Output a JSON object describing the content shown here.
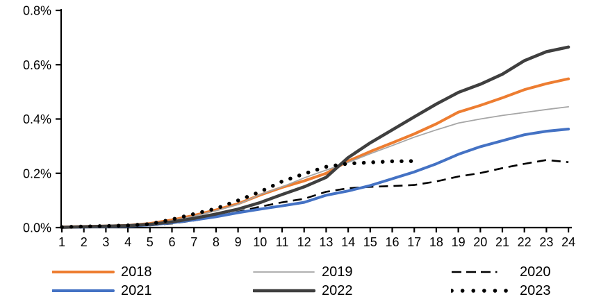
{
  "chart_data": {
    "type": "line",
    "title": "",
    "xlabel": "",
    "ylabel": "",
    "grid": false,
    "legend_position": "bottom",
    "x_axis": {
      "ticks": [
        "1",
        "2",
        "3",
        "4",
        "5",
        "6",
        "7",
        "8",
        "9",
        "10",
        "11",
        "12",
        "13",
        "14",
        "15",
        "16",
        "17",
        "18",
        "19",
        "20",
        "21",
        "22",
        "23",
        "24"
      ],
      "min": 1,
      "max": 24
    },
    "y_axis": {
      "ticks": [
        "0.0%",
        "0.2%",
        "0.4%",
        "0.6%",
        "0.8%"
      ],
      "min": 0.0,
      "max": 0.8,
      "unit": "percent"
    },
    "x": [
      1,
      2,
      3,
      4,
      5,
      6,
      7,
      8,
      9,
      10,
      11,
      12,
      13,
      14,
      15,
      16,
      17,
      18,
      19,
      20,
      21,
      22,
      23,
      24
    ],
    "series": [
      {
        "name": "2018",
        "color": "#ED7D31",
        "style": "solid",
        "width": 4,
        "values": [
          0.002,
          0.004,
          0.006,
          0.008,
          0.015,
          0.028,
          0.045,
          0.065,
          0.088,
          0.12,
          0.148,
          0.172,
          0.2,
          0.245,
          0.28,
          0.312,
          0.345,
          0.382,
          0.425,
          0.45,
          0.478,
          0.508,
          0.53,
          0.548
        ]
      },
      {
        "name": "2019",
        "color": "#A6A6A6",
        "style": "solid",
        "width": 1.8,
        "values": [
          0.002,
          0.003,
          0.005,
          0.007,
          0.012,
          0.025,
          0.042,
          0.062,
          0.085,
          0.122,
          0.15,
          0.183,
          0.212,
          0.24,
          0.272,
          0.302,
          0.333,
          0.36,
          0.385,
          0.4,
          0.413,
          0.424,
          0.435,
          0.445
        ]
      },
      {
        "name": "2020",
        "color": "#000000",
        "style": "dashed",
        "width": 2.6,
        "values": [
          0.001,
          0.002,
          0.003,
          0.005,
          0.008,
          0.015,
          0.026,
          0.04,
          0.058,
          0.077,
          0.093,
          0.106,
          0.132,
          0.145,
          0.15,
          0.153,
          0.157,
          0.17,
          0.188,
          0.201,
          0.219,
          0.235,
          0.249,
          0.241
        ]
      },
      {
        "name": "2021",
        "color": "#4472C4",
        "style": "solid",
        "width": 4,
        "values": [
          0.001,
          0.002,
          0.003,
          0.005,
          0.01,
          0.018,
          0.028,
          0.04,
          0.055,
          0.068,
          0.08,
          0.093,
          0.119,
          0.135,
          0.155,
          0.18,
          0.205,
          0.235,
          0.27,
          0.298,
          0.32,
          0.342,
          0.355,
          0.363
        ]
      },
      {
        "name": "2022",
        "color": "#3F3F3F",
        "style": "solid",
        "width": 4.5,
        "values": [
          0.001,
          0.003,
          0.005,
          0.007,
          0.012,
          0.021,
          0.034,
          0.05,
          0.068,
          0.092,
          0.122,
          0.15,
          0.185,
          0.258,
          0.312,
          0.36,
          0.408,
          0.455,
          0.498,
          0.528,
          0.565,
          0.615,
          0.648,
          0.665
        ]
      },
      {
        "name": "2023",
        "color": "#000000",
        "style": "dotted",
        "width": 5.5,
        "values": [
          0.002,
          0.004,
          0.006,
          0.008,
          0.013,
          0.03,
          0.05,
          0.07,
          0.1,
          0.132,
          0.17,
          0.198,
          0.224,
          0.236,
          0.24,
          0.244,
          0.245
        ]
      }
    ]
  },
  "legend": {
    "rows": [
      [
        "2018",
        "2019",
        "2020"
      ],
      [
        "2021",
        "2022",
        "2023"
      ]
    ]
  }
}
